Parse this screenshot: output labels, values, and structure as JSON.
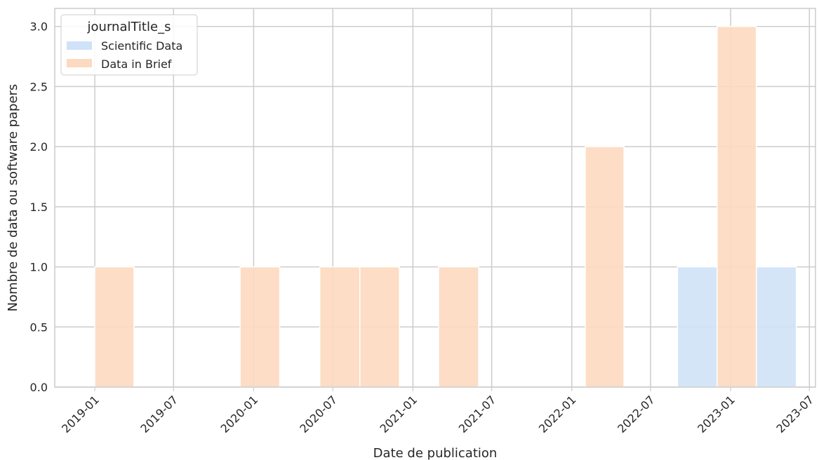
{
  "chart_data": {
    "type": "bar",
    "xlabel": "Date de publication",
    "ylabel": "Nombre de data ou software papers",
    "x_axis": {
      "type": "date",
      "range": [
        "2018-10-01",
        "2023-07-15"
      ],
      "ticks": [
        "2019-01",
        "2019-07",
        "2020-01",
        "2020-07",
        "2021-01",
        "2021-07",
        "2022-01",
        "2022-07",
        "2023-01",
        "2023-07"
      ]
    },
    "y_axis": {
      "range": [
        0,
        3.15
      ],
      "ticks": [
        "0.0",
        "0.5",
        "1.0",
        "1.5",
        "2.0",
        "2.5",
        "3.0"
      ]
    },
    "grid": true,
    "legend": {
      "title": "journalTitle_s",
      "placement": "top-left",
      "entries": [
        "Scientific Data",
        "Data in Brief"
      ]
    },
    "series": [
      {
        "name": "Scientific Data",
        "color": "#cfe2f7",
        "bars": [
          {
            "start": "2022-09-01",
            "end": "2022-12-01",
            "value": 1
          },
          {
            "start": "2023-03-01",
            "end": "2023-06-01",
            "value": 1
          }
        ]
      },
      {
        "name": "Data in Brief",
        "color": "#fdd9bf",
        "bars": [
          {
            "start": "2019-01-01",
            "end": "2019-04-01",
            "value": 1
          },
          {
            "start": "2019-12-01",
            "end": "2020-03-01",
            "value": 1
          },
          {
            "start": "2020-06-01",
            "end": "2020-09-01",
            "value": 1
          },
          {
            "start": "2020-09-01",
            "end": "2020-12-01",
            "value": 1
          },
          {
            "start": "2021-03-01",
            "end": "2021-06-01",
            "value": 1
          },
          {
            "start": "2022-02-01",
            "end": "2022-05-01",
            "value": 2
          },
          {
            "start": "2022-12-01",
            "end": "2023-03-01",
            "value": 3
          }
        ]
      }
    ]
  }
}
